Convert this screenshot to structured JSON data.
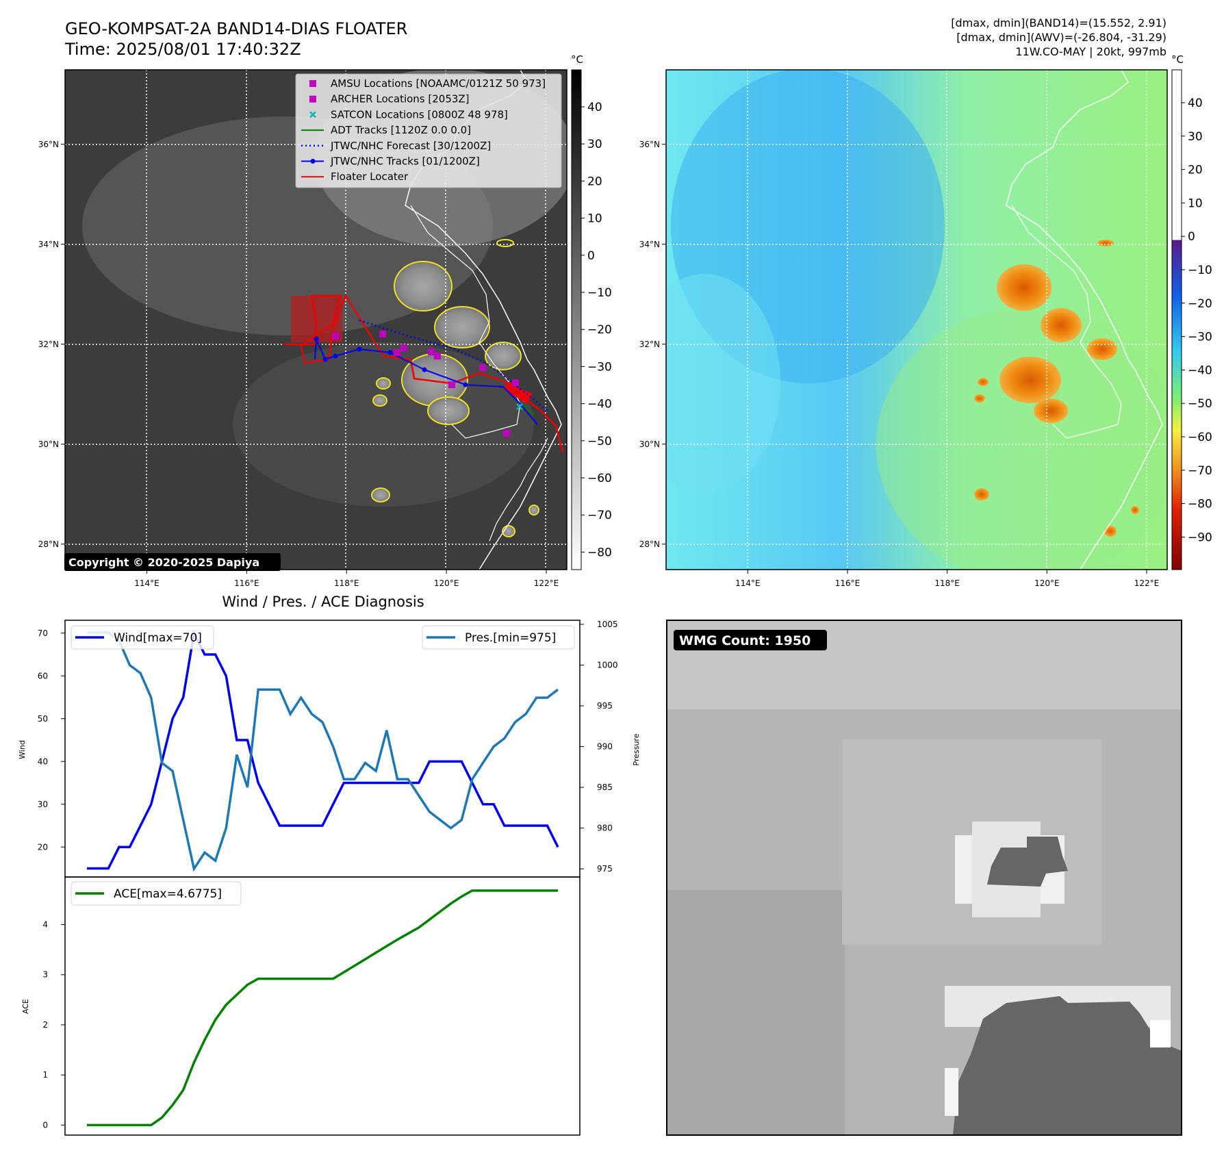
{
  "header": {
    "title": "GEO-KOMPSAT-2A BAND14-DIAS FLOATER",
    "time": "Time: 2025/08/01 17:40:32Z",
    "info_line1": "[dmax, dmin](BAND14)=(15.552, 2.91)",
    "info_line2": "[dmax, dmin](AWV)=(-26.804, -31.29)",
    "info_line3": "11W.CO-MAY | 20kt, 997mb"
  },
  "copyright": "Copyright © 2020-2025 Dapiya",
  "wmg_label": "WMG Count: 1950",
  "colors": {
    "ir_background": "#3a3a3a",
    "coast": "#ffffff",
    "wind": "#0000ee",
    "pressure": "#1f77b4",
    "ace": "#008000",
    "floater": "#ee0000",
    "amsu": "#c000c0",
    "satcon": "#00b5b5",
    "adt": "#008000",
    "forecast": "#0000ee"
  },
  "map_ir": {
    "colorbar_unit": "°C",
    "colorbar_ticks": [
      "40",
      "30",
      "20",
      "10",
      "0",
      "−10",
      "−20",
      "−30",
      "−40",
      "−50",
      "−60",
      "−70",
      "−80"
    ],
    "lon_ticks": [
      "114°E",
      "116°E",
      "118°E",
      "120°E",
      "122°E"
    ],
    "lat_ticks": [
      "36°N",
      "34°N",
      "32°N",
      "30°N",
      "28°N"
    ],
    "legend": [
      {
        "label": "AMSU Locations [NOAAMC/0121Z 50 973]",
        "marker": "square",
        "color": "#c000c0"
      },
      {
        "label": "ARCHER Locations [2053Z]",
        "marker": "square",
        "color": "#c000c0"
      },
      {
        "label": "SATCON Locations [0800Z 48 978]",
        "marker": "x",
        "color": "#00b5b5"
      },
      {
        "label": "ADT Tracks [1120Z 0.0 0.0]",
        "marker": "line",
        "color": "#008000"
      },
      {
        "label": "JTWC/NHC Forecast [30/1200Z]",
        "marker": "dotted",
        "color": "#0000ee"
      },
      {
        "label": "JTWC/NHC Tracks [01/1200Z]",
        "marker": "line-dot",
        "color": "#0000ee"
      },
      {
        "label": "Floater Locater",
        "marker": "line",
        "color": "#ee0000"
      }
    ]
  },
  "map_awv": {
    "colorbar_unit": "°C",
    "colorbar_ticks": [
      "40",
      "30",
      "20",
      "10",
      "0",
      "−10",
      "−20",
      "−30",
      "−40",
      "−50",
      "−60",
      "−70",
      "−80",
      "−90"
    ],
    "lon_ticks": [
      "114°E",
      "116°E",
      "118°E",
      "120°E",
      "122°E"
    ],
    "lat_ticks": [
      "36°N",
      "34°N",
      "32°N",
      "30°N",
      "28°N"
    ]
  },
  "chart_data": [
    {
      "type": "line",
      "title": "Wind / Pres. / ACE Diagnosis",
      "ylabel": "Wind",
      "ylabel_right": "Pressure",
      "y_ticks": [
        "70",
        "60",
        "50",
        "40",
        "30",
        "20"
      ],
      "y_ticks_right": [
        "1005",
        "1000",
        "995",
        "990",
        "985",
        "980",
        "975"
      ],
      "ylim": [
        13,
        73
      ],
      "ylim_right": [
        974,
        1005.5
      ],
      "series": [
        {
          "name": "Wind[max=70]",
          "axis": "left",
          "color": "#0000ee",
          "values": [
            15,
            15,
            15,
            20,
            20,
            25,
            30,
            40,
            50,
            55,
            70,
            65,
            65,
            60,
            45,
            45,
            35,
            30,
            25,
            25,
            25,
            25,
            25,
            30,
            35,
            35,
            35,
            35,
            35,
            35,
            35,
            35,
            40,
            40,
            40,
            40,
            35,
            30,
            30,
            25,
            25,
            25,
            25,
            25,
            20
          ]
        },
        {
          "name": "Pres.[min=975]",
          "axis": "right",
          "color": "#1f77b4",
          "values": [
            1004,
            1004,
            1004,
            1003,
            1000,
            999,
            996,
            988,
            987,
            981,
            975,
            977,
            976,
            980,
            989,
            985,
            997,
            997,
            997,
            994,
            996,
            994,
            993,
            990,
            986,
            986,
            988,
            987,
            992,
            986,
            986,
            984,
            982,
            981,
            980,
            981,
            986,
            988,
            990,
            991,
            993,
            994,
            996,
            996,
            997
          ]
        }
      ]
    },
    {
      "type": "line",
      "ylabel": "ACE",
      "y_ticks": [
        "4",
        "3",
        "2",
        "1",
        "0"
      ],
      "ylim": [
        -0.2,
        4.95
      ],
      "series": [
        {
          "name": "ACE[max=4.6775]",
          "color": "#008000",
          "values": [
            0,
            0,
            0,
            0,
            0,
            0,
            0,
            0.15,
            0.4,
            0.7,
            1.25,
            1.7,
            2.1,
            2.4,
            2.6,
            2.8,
            2.92,
            2.92,
            2.92,
            2.92,
            2.92,
            2.92,
            2.92,
            2.92,
            3.05,
            3.18,
            3.31,
            3.44,
            3.57,
            3.7,
            3.82,
            3.94,
            4.1,
            4.26,
            4.42,
            4.56,
            4.6775,
            4.6775,
            4.6775,
            4.6775,
            4.6775,
            4.6775,
            4.6775,
            4.6775,
            4.6775
          ]
        }
      ]
    }
  ]
}
